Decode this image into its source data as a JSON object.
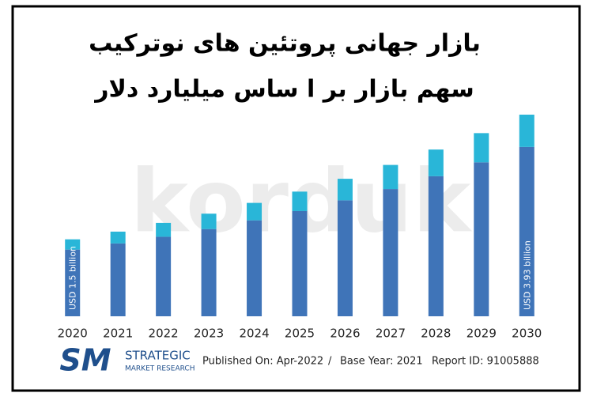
{
  "chart_data": {
    "type": "bar",
    "stacked": true,
    "title": [
      "بازار جهانی پروتئین های نوترکیب",
      "سهم بازار بر ا ساس میلیارد دلار"
    ],
    "categories": [
      "2020",
      "2021",
      "2022",
      "2023",
      "2024",
      "2025",
      "2026",
      "2027",
      "2028",
      "2029",
      "2030"
    ],
    "series": [
      {
        "color": "#3f74b8",
        "values": [
          1.3,
          1.42,
          1.55,
          1.7,
          1.87,
          2.05,
          2.26,
          2.48,
          2.73,
          3.0,
          3.3
        ]
      },
      {
        "color": "#29b6d8",
        "values": [
          0.2,
          0.23,
          0.27,
          0.3,
          0.34,
          0.38,
          0.42,
          0.47,
          0.52,
          0.57,
          0.63
        ]
      }
    ],
    "annotations": [
      {
        "x": "2020",
        "text": "USD 1.5 billion"
      },
      {
        "x": "2030",
        "text": "USD 3.93 billion"
      }
    ],
    "watermark": "korduk",
    "footer": {
      "logo": "SM",
      "brand": "STRATEGIC",
      "brand_sub": "MARKET RESEARCH",
      "published": "Published On: Apr-2022",
      "separator": "/",
      "base_year": "Base Year: 2021",
      "report_id": "Report ID: 91005888"
    }
  }
}
